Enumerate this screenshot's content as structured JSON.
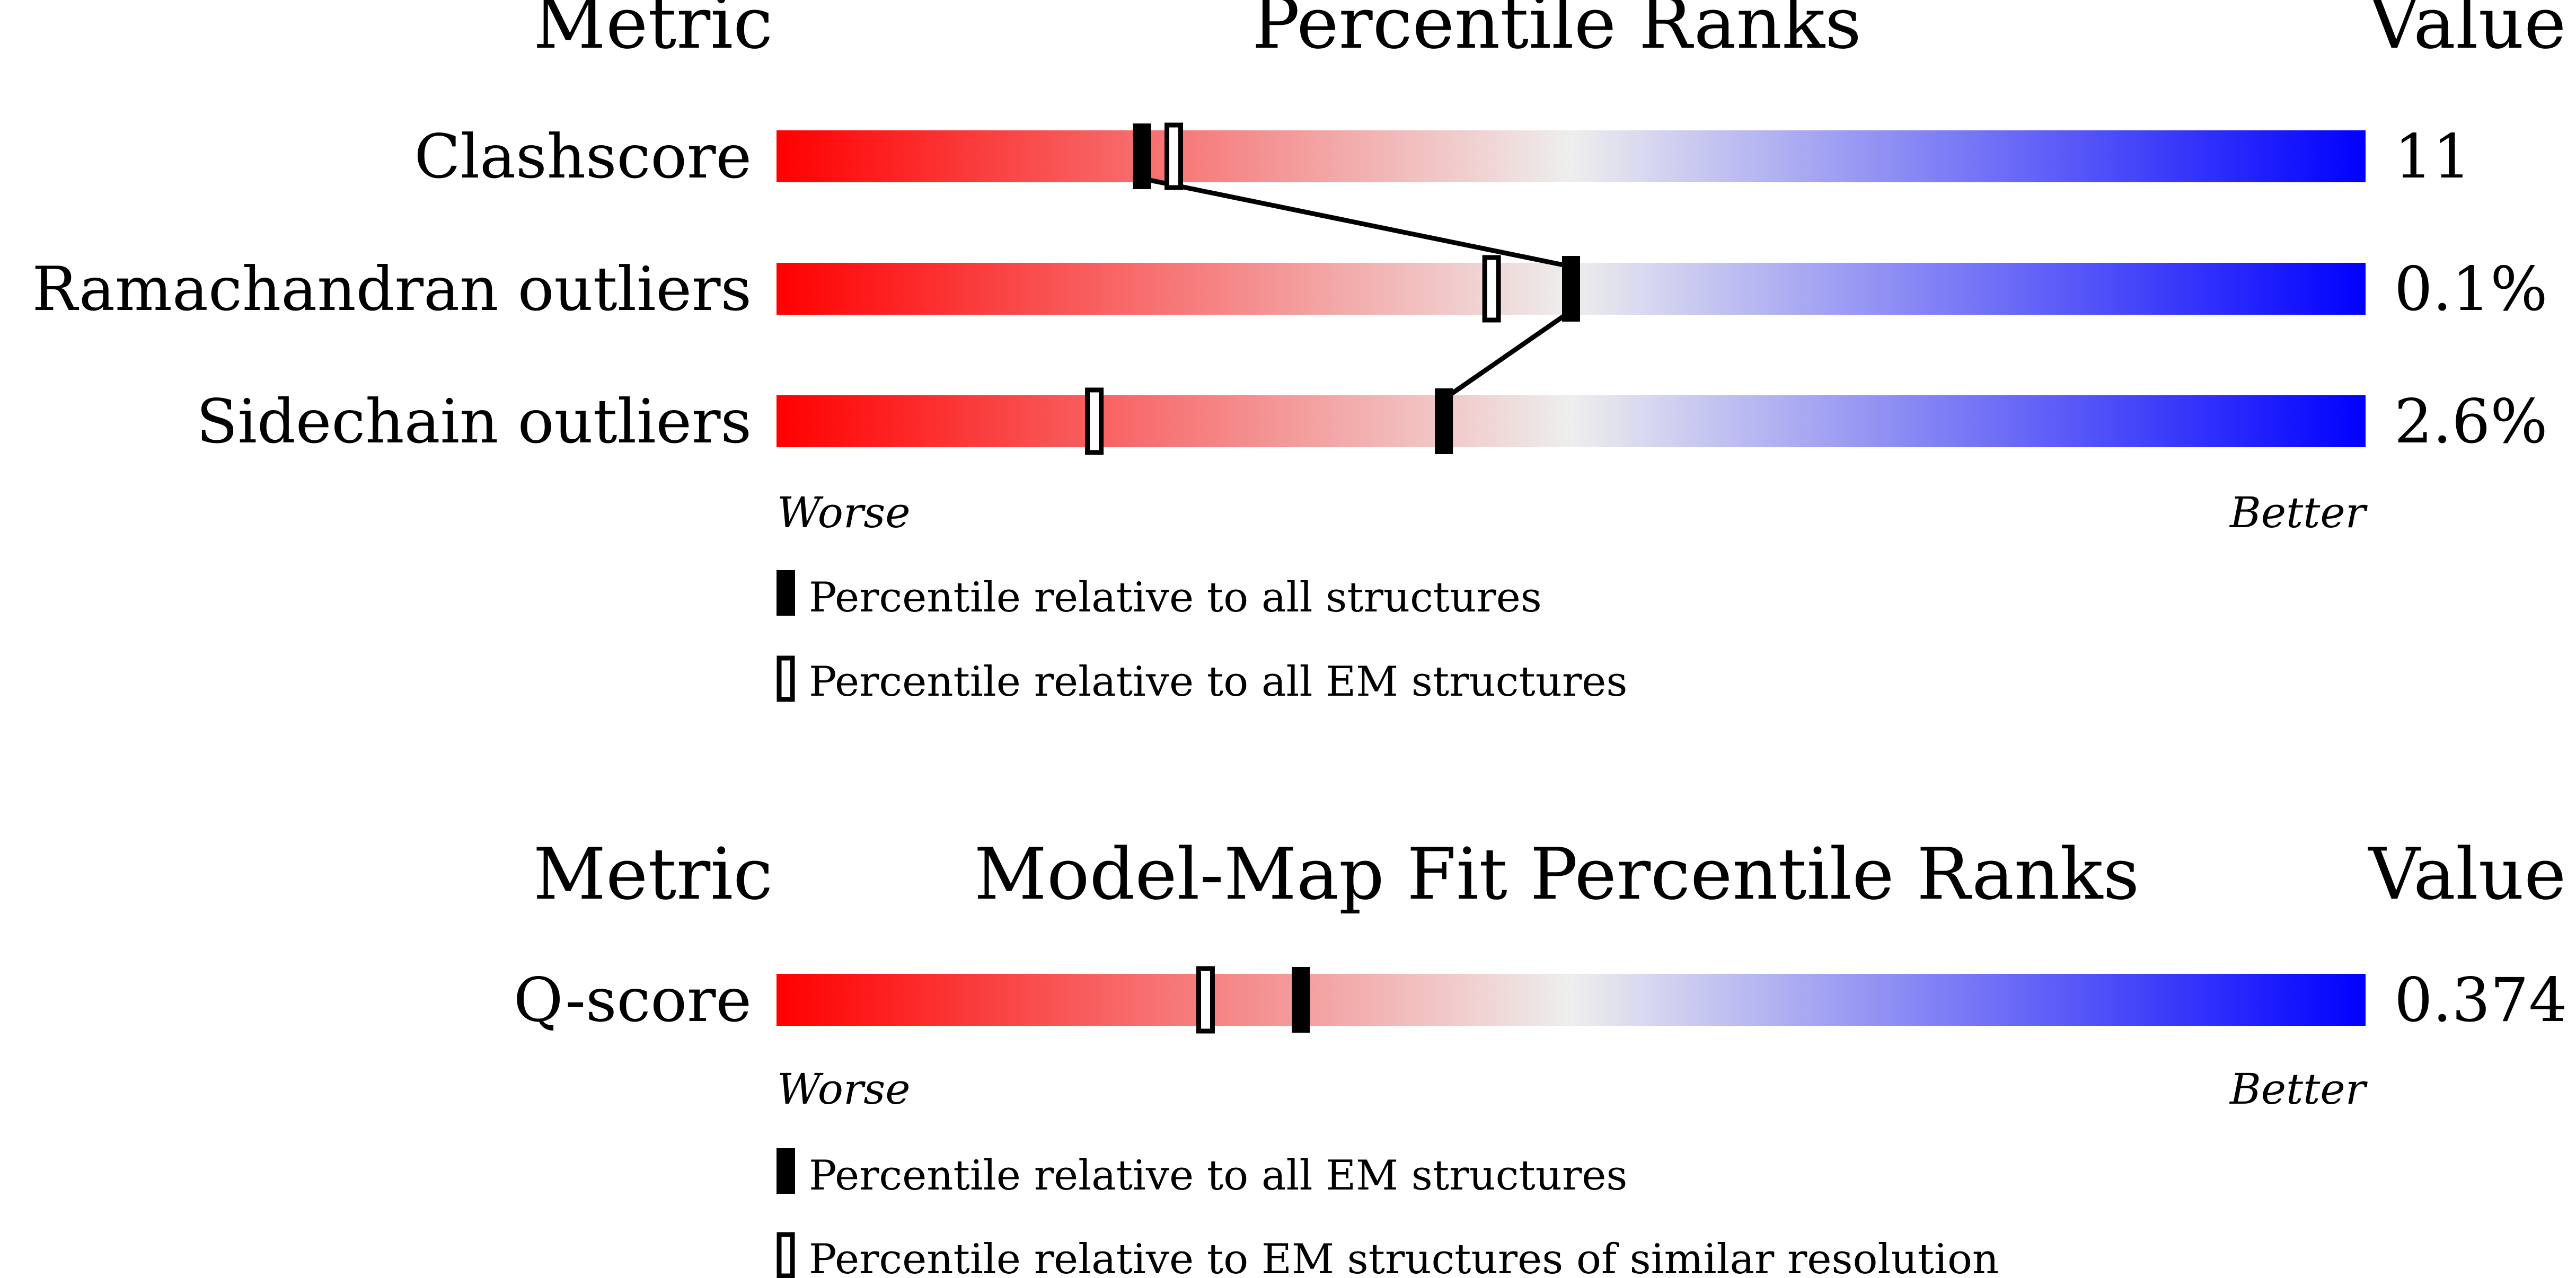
{
  "colors": {
    "worse": "#ff0000",
    "mid": "#eeeeee",
    "better": "#0000ff",
    "marker": "#000000"
  },
  "panels": [
    {
      "header_metric": "Metric",
      "header_title": "Percentile Ranks",
      "header_value": "Value",
      "worse_label": "Worse",
      "better_label": "Better",
      "legend": [
        {
          "style": "filled",
          "text": "Percentile relative to all structures"
        },
        {
          "style": "open",
          "text": "Percentile relative to all EM structures"
        }
      ]
    },
    {
      "header_metric": "Metric",
      "header_title": "Model-Map Fit Percentile Ranks",
      "header_value": "Value",
      "worse_label": "Worse",
      "better_label": "Better",
      "legend": [
        {
          "style": "filled",
          "text": "Percentile relative to all EM structures"
        },
        {
          "style": "open",
          "text": "Percentile relative to EM structures of similar resolution"
        }
      ]
    }
  ],
  "chart_data": [
    {
      "type": "percentile-slider",
      "title": "Percentile Ranks",
      "metrics": [
        "Clashscore",
        "Ramachandran outliers",
        "Sidechain outliers"
      ],
      "values": [
        "11",
        "0.1%",
        "2.6%"
      ],
      "series": [
        {
          "name": "Percentile relative to all structures",
          "style": "filled",
          "values": [
            23,
            50,
            42
          ]
        },
        {
          "name": "Percentile relative to all EM structures",
          "style": "open",
          "values": [
            25,
            45,
            20
          ]
        }
      ],
      "connect_series": "filled",
      "xlim": [
        0,
        100
      ],
      "xlabel_left": "Worse",
      "xlabel_right": "Better"
    },
    {
      "type": "percentile-slider",
      "title": "Model-Map Fit Percentile Ranks",
      "metrics": [
        "Q-score"
      ],
      "values": [
        "0.374"
      ],
      "series": [
        {
          "name": "Percentile relative to all EM structures",
          "style": "filled",
          "values": [
            33
          ]
        },
        {
          "name": "Percentile relative to EM structures of similar resolution",
          "style": "open",
          "values": [
            27
          ]
        }
      ],
      "connect_series": "filled",
      "xlim": [
        0,
        100
      ],
      "xlabel_left": "Worse",
      "xlabel_right": "Better"
    }
  ]
}
